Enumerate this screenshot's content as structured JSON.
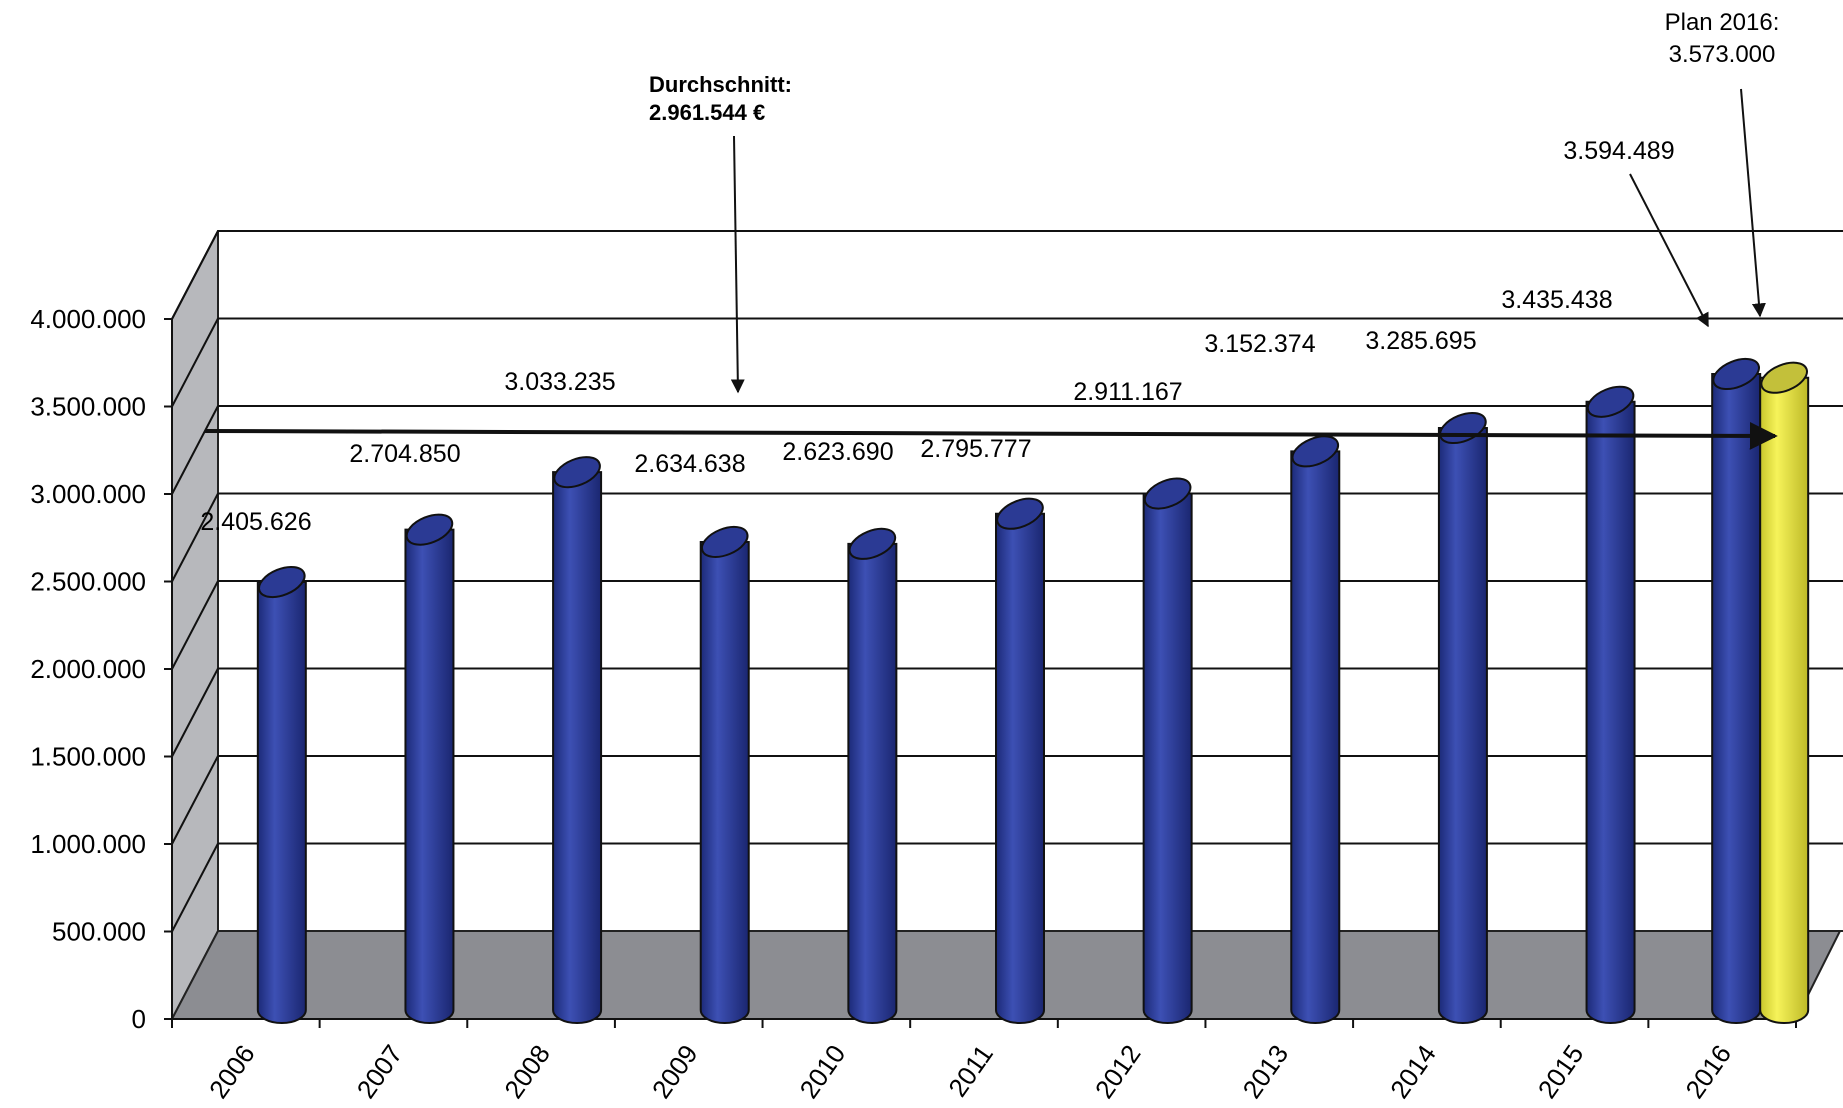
{
  "chart_data": {
    "type": "bar",
    "categories": [
      "2006",
      "2007",
      "2008",
      "2009",
      "2010",
      "2011",
      "2012",
      "2013",
      "2014",
      "2015",
      "2016"
    ],
    "series": [
      {
        "values": [
          2405626,
          2704850,
          3033235,
          2634638,
          2623690,
          2795777,
          2911167,
          3152374,
          3285695,
          3435438,
          3594489
        ]
      }
    ],
    "plan": {
      "category": "2016",
      "value": 3573000
    },
    "data_labels": [
      "2.405.626",
      "2.704.850",
      "3.033.235",
      "2.634.638",
      "2.623.690",
      "2.795.777",
      "2.911.167",
      "3.152.374",
      "3.285.695",
      "3.435.438",
      "3.594.489"
    ],
    "y_ticks": [
      "0",
      "500.000",
      "1.000.000",
      "1.500.000",
      "2.000.000",
      "2.500.000",
      "3.000.000",
      "3.500.000",
      "4.000.000"
    ],
    "ylim": [
      0,
      4000000
    ],
    "average": {
      "value": 2961544,
      "label_line1": "Durchschnitt:",
      "label_line2": "2.961.544 €"
    },
    "plan_label": {
      "line1": "Plan 2016:",
      "line2": "3.573.000"
    },
    "colors": {
      "bar": "#2e3f9a",
      "plan_bar": "#ece94a",
      "floor": "#8c8d92",
      "wall": "#ffffff",
      "side_wall": "#b7b8bc"
    }
  }
}
